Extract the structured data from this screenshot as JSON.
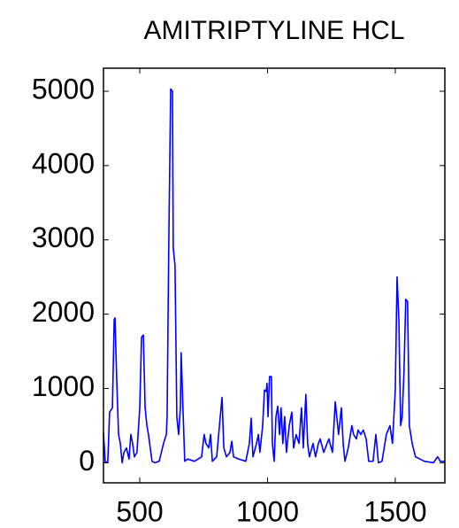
{
  "chart_data": {
    "type": "line",
    "title": "AMITRIPTYLINE HCL",
    "color": "#0000ff",
    "x": [
      358,
      365,
      375,
      382,
      393,
      400,
      403,
      410,
      417,
      424,
      431,
      438,
      448,
      458,
      465,
      472,
      479,
      489,
      500,
      507,
      514,
      521,
      528,
      534,
      541,
      548,
      559,
      576,
      593,
      604,
      607,
      614,
      621,
      628,
      631,
      638,
      645,
      652,
      659,
      662,
      669,
      676,
      687,
      714,
      742,
      752,
      759,
      770,
      777,
      784,
      801,
      815,
      822,
      829,
      839,
      853,
      860,
      867,
      887,
      915,
      929,
      936,
      943,
      957,
      964,
      970,
      981,
      988,
      995,
      998,
      1002,
      1008,
      1015,
      1019,
      1026,
      1033,
      1040,
      1047,
      1053,
      1060,
      1067,
      1074,
      1085,
      1095,
      1102,
      1112,
      1123,
      1133,
      1140,
      1150,
      1157,
      1164,
      1178,
      1188,
      1199,
      1206,
      1220,
      1233,
      1240,
      1254,
      1265,
      1271,
      1278,
      1289,
      1296,
      1303,
      1316,
      1330,
      1337,
      1348,
      1354,
      1365,
      1375,
      1386,
      1396,
      1413,
      1424,
      1434,
      1448,
      1465,
      1479,
      1489,
      1500,
      1507,
      1514,
      1521,
      1527,
      1534,
      1541,
      1548,
      1555,
      1566,
      1579,
      1614,
      1649,
      1666,
      1676,
      1694
    ],
    "values": [
      400,
      0,
      20,
      680,
      740,
      1930,
      1950,
      1100,
      380,
      260,
      0,
      140,
      200,
      50,
      380,
      260,
      80,
      140,
      740,
      1690,
      1720,
      740,
      500,
      380,
      200,
      20,
      0,
      20,
      260,
      380,
      620,
      3070,
      5030,
      5000,
      2890,
      2650,
      620,
      380,
      740,
      1480,
      740,
      20,
      50,
      20,
      80,
      380,
      260,
      200,
      380,
      20,
      80,
      620,
      880,
      200,
      80,
      140,
      290,
      80,
      50,
      20,
      260,
      600,
      80,
      260,
      380,
      140,
      500,
      980,
      960,
      1070,
      620,
      1160,
      1160,
      260,
      20,
      620,
      760,
      380,
      740,
      260,
      620,
      140,
      500,
      680,
      200,
      380,
      260,
      740,
      200,
      920,
      260,
      80,
      260,
      80,
      260,
      320,
      140,
      260,
      320,
      140,
      820,
      620,
      380,
      740,
      260,
      20,
      200,
      500,
      380,
      320,
      440,
      380,
      440,
      320,
      20,
      20,
      380,
      0,
      20,
      380,
      500,
      260,
      980,
      2500,
      1930,
      500,
      620,
      1220,
      2200,
      2170,
      500,
      260,
      80,
      20,
      0,
      80,
      20,
      20
    ],
    "xlim": [
      358,
      1694
    ],
    "ylim": [
      -270,
      5310
    ],
    "xticks": [
      500,
      1000,
      1500
    ],
    "yticks": [
      0,
      1000,
      2000,
      3000,
      4000,
      5000
    ]
  }
}
